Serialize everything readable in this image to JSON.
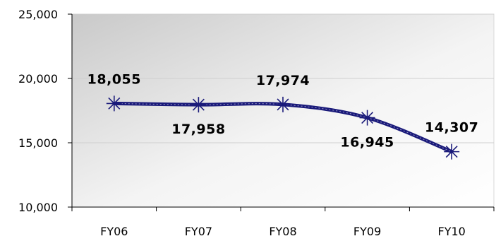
{
  "chart_data": {
    "type": "line",
    "categories": [
      "FY06",
      "FY07",
      "FY08",
      "FY09",
      "FY10"
    ],
    "series": [
      {
        "values": [
          18055,
          17958,
          17974,
          16945,
          14307
        ],
        "labels": [
          "18,055",
          "17,958",
          "17,974",
          "16,945",
          "14,307"
        ],
        "color": "#1a1a7a",
        "marker": "asterisk"
      }
    ],
    "yticks": [
      "10,000",
      "15,000",
      "20,000",
      "25,000"
    ],
    "ytick_values": [
      10000,
      15000,
      20000,
      25000
    ],
    "ylim": [
      10000,
      25000
    ],
    "grid": true,
    "legend": "none"
  }
}
